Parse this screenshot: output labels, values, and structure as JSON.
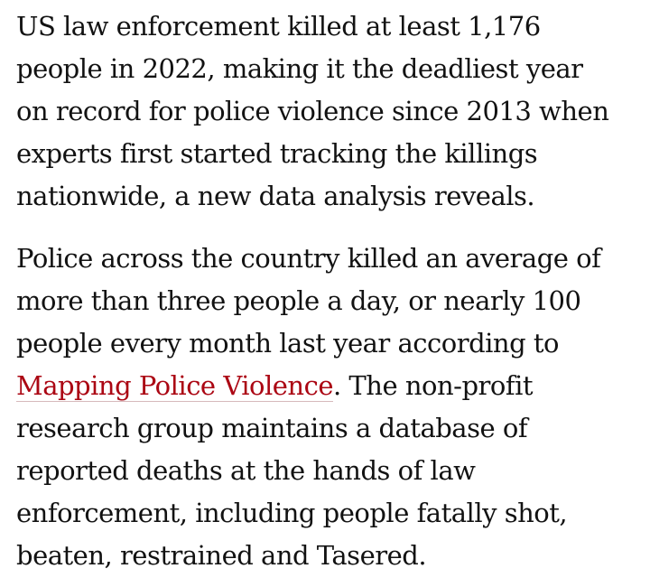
{
  "article": {
    "paragraphs": [
      {
        "lines": [
          "US law enforcement killed at least 1,176",
          "people in 2022, making it the deadliest year",
          "on record for police violence since 2013 when",
          "experts first started tracking the killings",
          "nationwide, a new data analysis reveals."
        ]
      },
      {
        "lines": [
          "Police across the country killed an average of",
          "more than three people a day, or nearly 100",
          "people every month last year according to"
        ],
        "link_line": {
          "link_text": "Mapping Police Violence",
          "after_text": ". The non-profit"
        },
        "lines_after": [
          "research group maintains a database of",
          "reported deaths at the hands of law",
          "enforcement, including people fatally shot,",
          "beaten, restrained and Tasered."
        ]
      }
    ]
  },
  "colors": {
    "text": "#121212",
    "link": "#ab0613",
    "background": "#ffffff"
  }
}
